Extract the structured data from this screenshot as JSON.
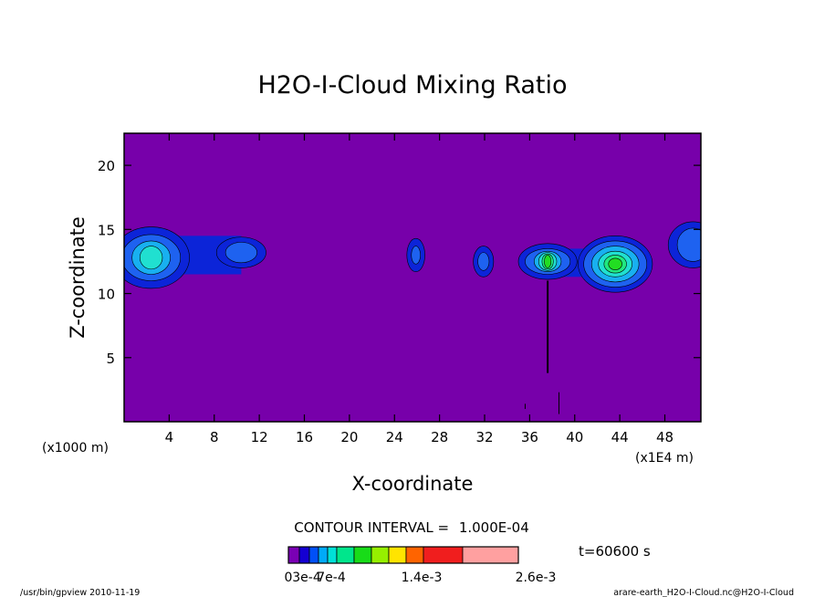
{
  "chart_data": {
    "type": "heatmap",
    "title": "H2O-I-Cloud Mixing Ratio",
    "xlabel": "X-coordinate",
    "ylabel": "Z-coordinate",
    "x_unit_left": "(x1000 m)",
    "x_unit_right": "(x1E4 m)",
    "x_ticks": [
      "4",
      "8",
      "12",
      "16",
      "20",
      "24",
      "28",
      "32",
      "36",
      "40",
      "44",
      "48"
    ],
    "x_tick_values": [
      4,
      8,
      12,
      16,
      20,
      24,
      28,
      32,
      36,
      40,
      44,
      48
    ],
    "y_ticks": [
      "5",
      "10",
      "15",
      "20"
    ],
    "y_tick_values": [
      5,
      10,
      15,
      20
    ],
    "xlim": [
      0,
      51.2
    ],
    "ylim": [
      0,
      22.5
    ],
    "background_color": "#7700aa",
    "level_colors": [
      "#7700aa",
      "#0c24d8",
      "#1e62f0",
      "#18b0f0",
      "#20e0d0",
      "#20e880",
      "#22dd22",
      "#88ee00",
      "#ffe400",
      "#ff6400",
      "#f02020",
      "#ffa0a0"
    ],
    "level_colorbar_colors": [
      "#7a00b4",
      "#1400d2",
      "#0050f8",
      "#00aaf8",
      "#00e0d8",
      "#00e68c",
      "#18dc18",
      "#96f000",
      "#ffe400",
      "#ff6400",
      "#f01e1e",
      "#ffa0a0"
    ],
    "contour_interval_label": "CONTOUR INTERVAL =",
    "contour_interval_value": "1.000E-04",
    "time_label": "t=60600 s",
    "colorbar_labels": [
      "0",
      "3e-4",
      "7e-4",
      "1.4e-3",
      "2.6e-3"
    ],
    "colorbar_label_positions": [
      0,
      1,
      3,
      6,
      10
    ],
    "footer_left": "/usr/bin/gpview   2010-11-19",
    "footer_right": "arare-earth_H2O-I-Cloud.nc@H2O-I-Cloud",
    "blobs": [
      {
        "x": 2.4,
        "z": 12.8,
        "max_level": 4
      },
      {
        "x": 10.4,
        "z": 13.2,
        "max_level": 2
      },
      {
        "x": 25.9,
        "z": 13.0,
        "max_level": 2
      },
      {
        "x": 31.9,
        "z": 12.5,
        "max_level": 2
      },
      {
        "x": 37.6,
        "z": 12.5,
        "max_level": 6
      },
      {
        "x": 43.6,
        "z": 12.3,
        "max_level": 6
      },
      {
        "x": 50.5,
        "z": 13.8,
        "max_level": 2
      }
    ],
    "features": [
      {
        "x": 37.6,
        "z_top": 11.0,
        "z_bottom": 3.8
      },
      {
        "x": 35.6,
        "z_top": 1.4,
        "z_bottom": 1.0
      },
      {
        "x": 38.6,
        "z_top": 2.3,
        "z_bottom": 0.6
      }
    ]
  }
}
